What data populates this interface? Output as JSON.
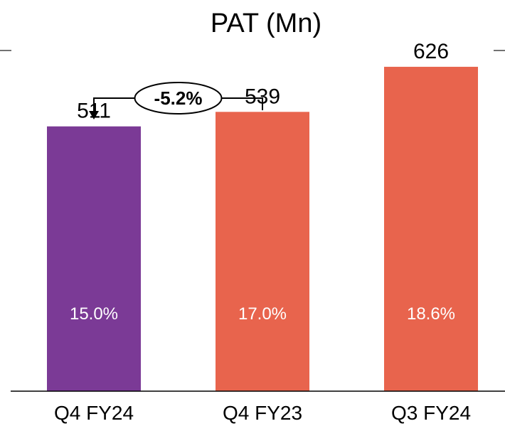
{
  "chart_data": {
    "type": "bar",
    "title": "PAT (Mn)",
    "categories": [
      "Q4 FY24",
      "Q4 FY23",
      "Q3 FY24"
    ],
    "values": [
      511,
      539,
      626
    ],
    "inner_labels": [
      "15.0%",
      "17.0%",
      "18.6%"
    ],
    "bar_colors": [
      "#7B3A96",
      "#E8644D",
      "#E8644D"
    ],
    "change_annotation": {
      "text": "-5.2%",
      "from": "Q4 FY23",
      "to": "Q4 FY24"
    },
    "ylim": [
      0,
      700
    ],
    "grid": false,
    "legend": "none"
  }
}
